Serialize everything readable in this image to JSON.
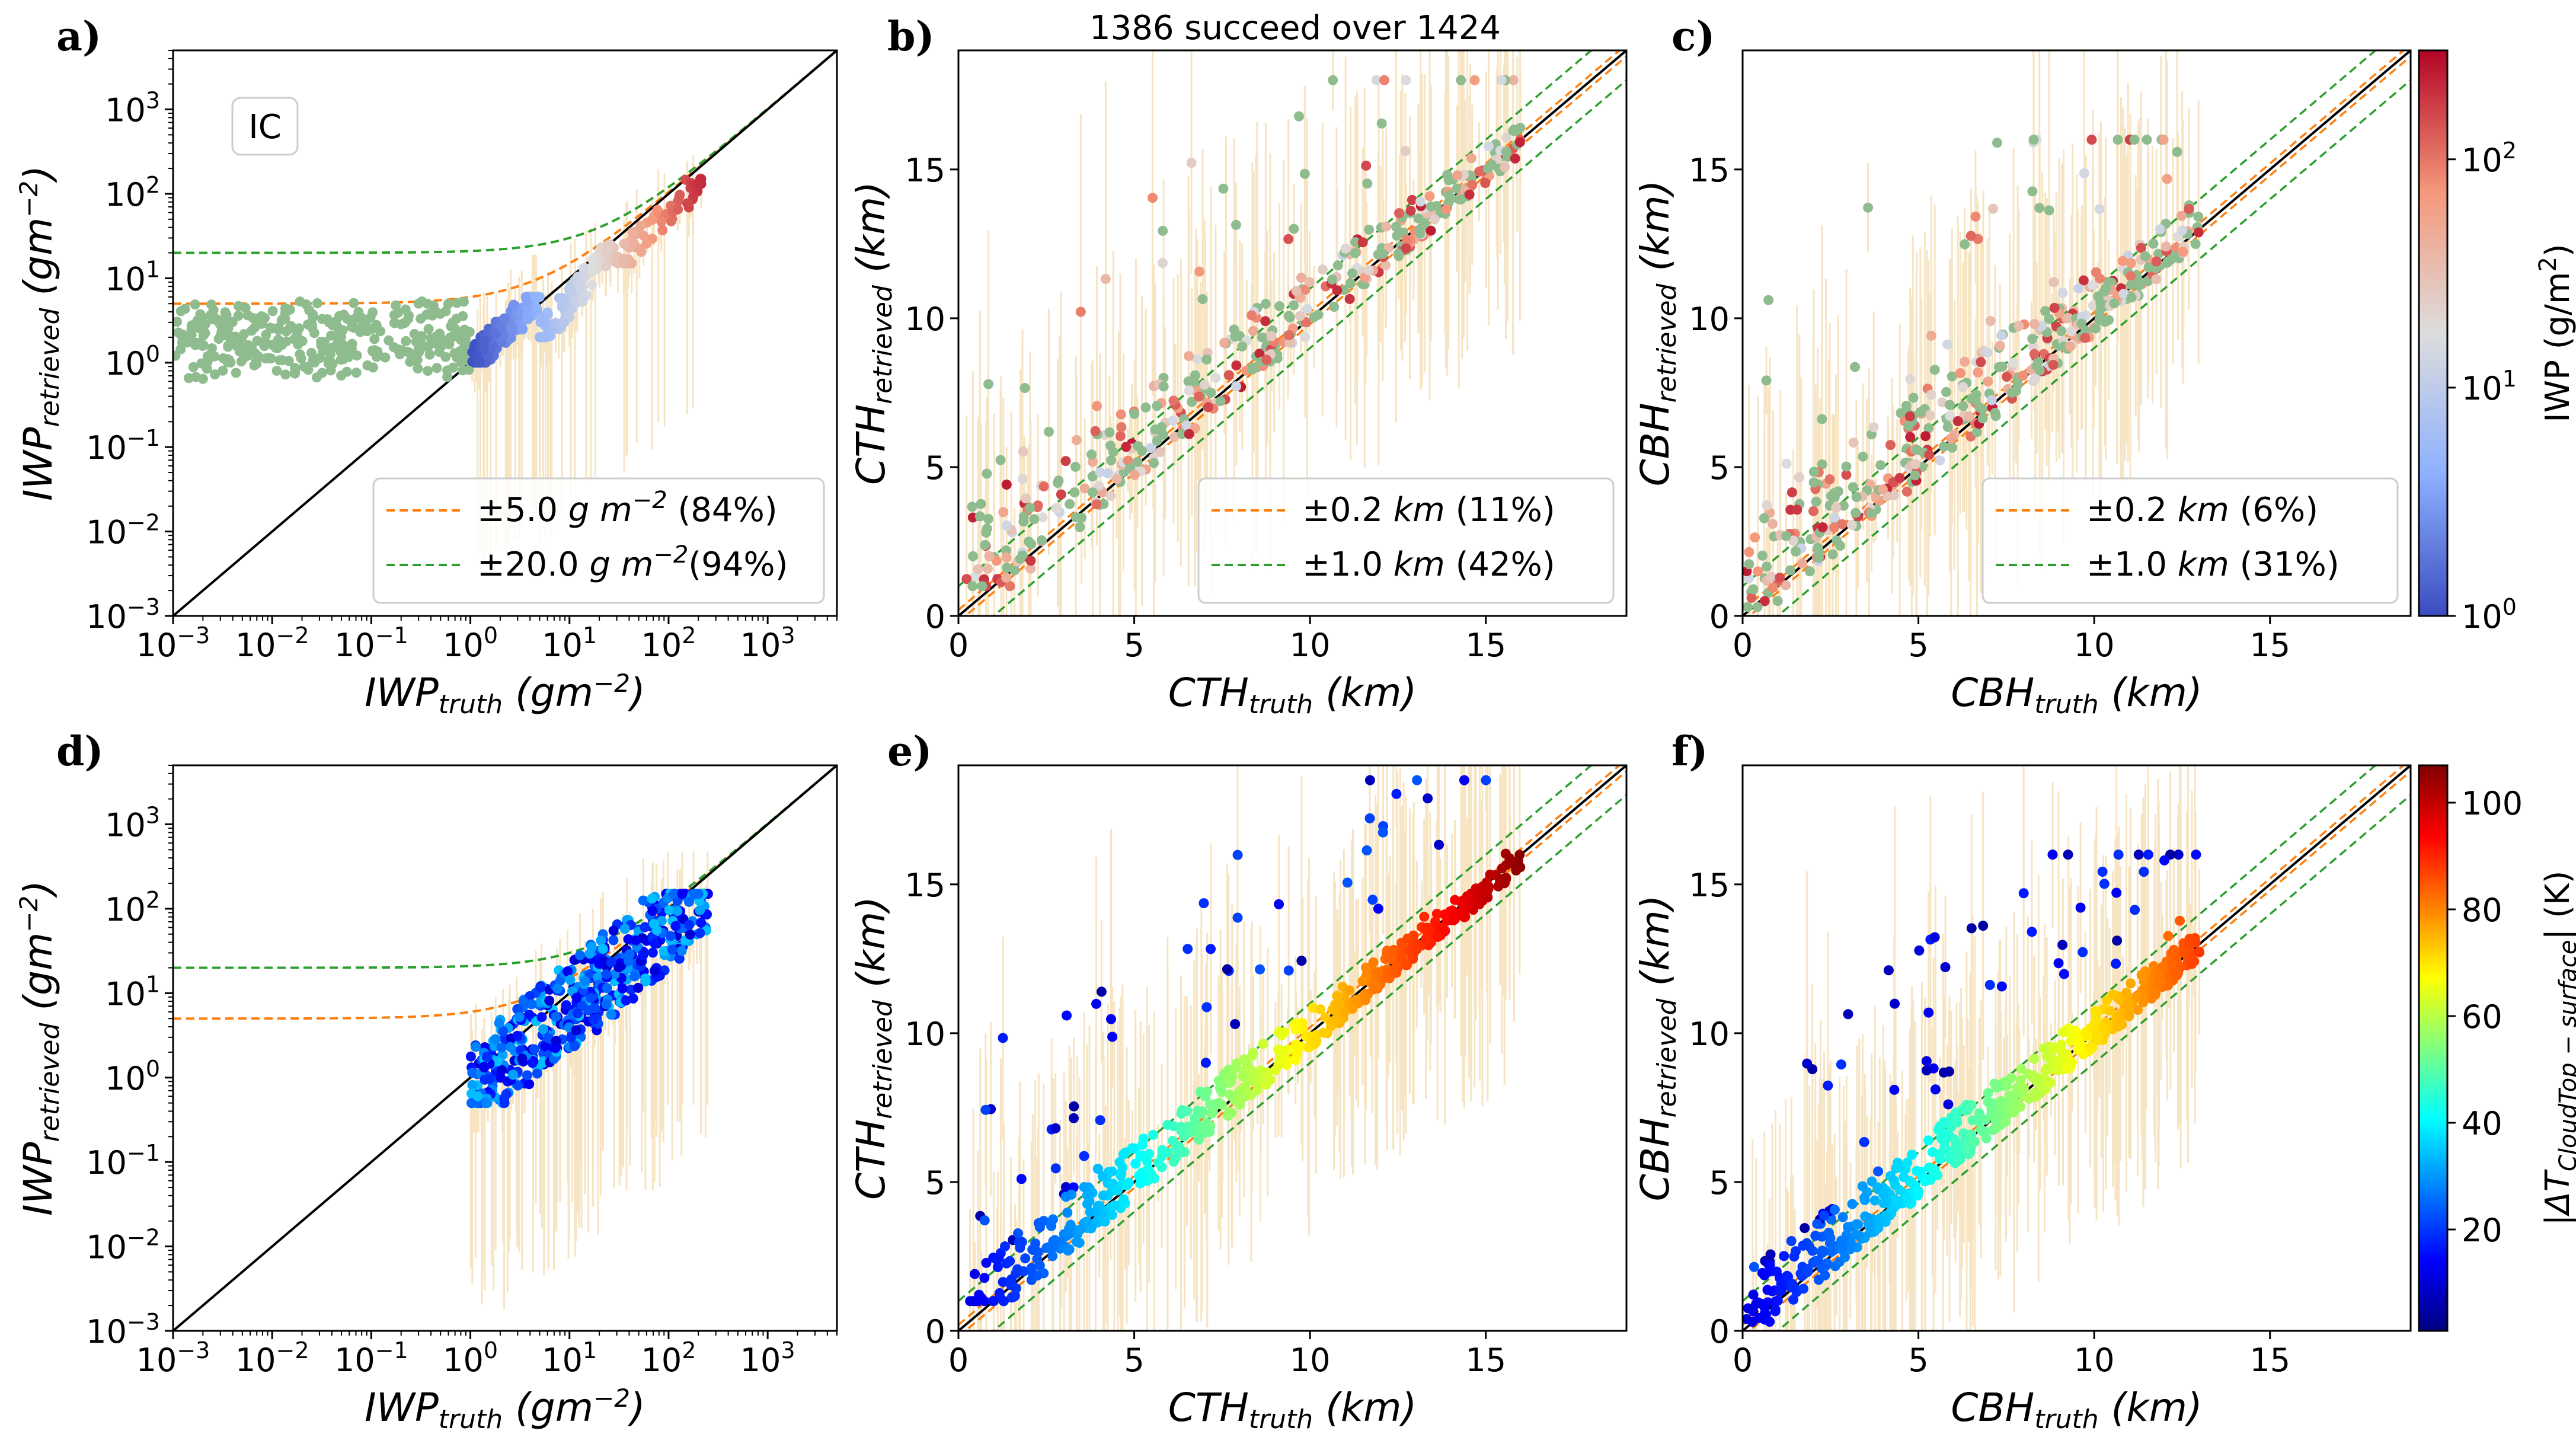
{
  "figure": {
    "suptitle": "1386 succeed over 1424",
    "colors": {
      "green_scatter": "#8fbc8f",
      "errorbar": "#f5deb3",
      "tol_orange": "#ff7f0e",
      "tol_green": "#2ca02c",
      "identity": "#000000"
    }
  },
  "chart_data": [
    {
      "id": "a",
      "panel_label": "a)",
      "type": "scatter",
      "xscale": "log",
      "yscale": "log",
      "xlim": [
        0.001,
        5000
      ],
      "ylim": [
        0.001,
        5000
      ],
      "xlabel": "IWP",
      "xlabel_sub": "truth",
      "xunit": "(gm",
      "ylabel": "IWP",
      "ylabel_sub": "retrieved",
      "yunit": "(gm",
      "unit_exp": "−2",
      "xticks": [
        0.001,
        0.01,
        0.1,
        1,
        10,
        100,
        1000
      ],
      "yticks": [
        0.001,
        0.01,
        0.1,
        1,
        10,
        100,
        1000
      ],
      "tick_base": "10",
      "tick_exps": [
        "−3",
        "−2",
        "−1",
        "0",
        "1",
        "2",
        "3"
      ],
      "annotation": "IC",
      "tolerance_kind": "absolute_log",
      "legend": [
        {
          "text": "±5.0 ",
          "unit": "g m",
          "exp": "−2",
          "pct": "  (84%)",
          "color": "#ff7f0e",
          "tol": 5
        },
        {
          "text": "±20.0 ",
          "unit": "g m",
          "exp": "−2",
          "pct": "(94%)",
          "color": "#2ca02c",
          "tol": 20
        }
      ],
      "legend_loc": "lower right",
      "colorscale": "iwp",
      "points": [
        {
          "x_range": [
            0.001,
            1.0
          ],
          "y_range": [
            0.4,
            6
          ],
          "n": 330,
          "color": "green"
        },
        {
          "x_range": [
            1.0,
            5.0
          ],
          "y_range": [
            1.0,
            6
          ],
          "n": 160,
          "color": "iwp"
        },
        {
          "x_range": [
            5.0,
            30
          ],
          "y_range": [
            2,
            25
          ],
          "n": 110,
          "color": "iwp"
        },
        {
          "x_range": [
            30,
            220
          ],
          "y_range": [
            15,
            150
          ],
          "n": 60,
          "color": "iwp"
        }
      ]
    },
    {
      "id": "b",
      "panel_label": "b)",
      "type": "scatter",
      "xscale": "linear",
      "yscale": "linear",
      "xlim": [
        0,
        19
      ],
      "ylim": [
        0,
        19
      ],
      "xlabel": "CTH",
      "xlabel_sub": "truth",
      "xunit": "(km)",
      "ylabel": "CTH",
      "ylabel_sub": "retrieved",
      "yunit": "(km)",
      "xticks": [
        0,
        5,
        10,
        15
      ],
      "yticks": [
        0,
        5,
        10,
        15
      ],
      "tick_labels": [
        "0",
        "5",
        "10",
        "15"
      ],
      "tolerance_kind": "absolute",
      "legend": [
        {
          "text": "±0.2 ",
          "unit": "km",
          "pct": " (11%)",
          "color": "#ff7f0e",
          "tol": 0.2
        },
        {
          "text": "±1.0 ",
          "unit": "km",
          "pct": " (42%)",
          "color": "#2ca02c",
          "tol": 1.0
        }
      ],
      "legend_loc": "lower right",
      "colorscale": "iwp",
      "points": [
        {
          "x_range": [
            0.2,
            16
          ],
          "y_range": [
            1,
            18
          ],
          "n": 420,
          "color": "mixed"
        }
      ]
    },
    {
      "id": "c",
      "panel_label": "c)",
      "type": "scatter",
      "xscale": "linear",
      "yscale": "linear",
      "xlim": [
        0,
        19
      ],
      "ylim": [
        0,
        19
      ],
      "xlabel": "CBH",
      "xlabel_sub": "truth",
      "xunit": "(km)",
      "ylabel": "CBH",
      "ylabel_sub": "retrieved",
      "yunit": "(km)",
      "xticks": [
        0,
        5,
        10,
        15
      ],
      "yticks": [
        0,
        5,
        10,
        15
      ],
      "tick_labels": [
        "0",
        "5",
        "10",
        "15"
      ],
      "tolerance_kind": "absolute",
      "legend": [
        {
          "text": "±0.2 ",
          "unit": "km",
          "pct": " (6%)",
          "color": "#ff7f0e",
          "tol": 0.2
        },
        {
          "text": "±1.0 ",
          "unit": "km",
          "pct": " (31%)",
          "color": "#2ca02c",
          "tol": 1.0
        }
      ],
      "legend_loc": "lower right",
      "colorscale": "iwp",
      "points": [
        {
          "x_range": [
            0.1,
            13
          ],
          "y_range": [
            0.3,
            16
          ],
          "n": 420,
          "color": "mixed"
        }
      ]
    },
    {
      "id": "d",
      "panel_label": "d)",
      "type": "scatter",
      "xscale": "log",
      "yscale": "log",
      "xlim": [
        0.001,
        5000
      ],
      "ylim": [
        0.001,
        5000
      ],
      "xlabel": "IWP",
      "xlabel_sub": "truth",
      "xunit": "(gm",
      "ylabel": "IWP",
      "ylabel_sub": "retrieved",
      "yunit": "(gm",
      "unit_exp": "−2",
      "xticks": [
        0.001,
        0.01,
        0.1,
        1,
        10,
        100,
        1000
      ],
      "yticks": [
        0.001,
        0.01,
        0.1,
        1,
        10,
        100,
        1000
      ],
      "tick_base": "10",
      "tick_exps": [
        "−3",
        "−2",
        "−1",
        "0",
        "1",
        "2",
        "3"
      ],
      "tolerance_kind": "absolute_log",
      "tol_values": [
        5,
        20
      ],
      "colorscale": "dT",
      "points": [
        {
          "x_range": [
            1.0,
            250
          ],
          "y_range": [
            0.5,
            150
          ],
          "n": 520,
          "color": "dT"
        }
      ]
    },
    {
      "id": "e",
      "panel_label": "e)",
      "type": "scatter",
      "xscale": "linear",
      "yscale": "linear",
      "xlim": [
        0,
        19
      ],
      "ylim": [
        0,
        19
      ],
      "xlabel": "CTH",
      "xlabel_sub": "truth",
      "xunit": "(km)",
      "ylabel": "CTH",
      "ylabel_sub": "retrieved",
      "yunit": "(km)",
      "xticks": [
        0,
        5,
        10,
        15
      ],
      "yticks": [
        0,
        5,
        10,
        15
      ],
      "tick_labels": [
        "0",
        "5",
        "10",
        "15"
      ],
      "tolerance_kind": "absolute",
      "tol_values": [
        0.2,
        1.0
      ],
      "colorscale": "dT",
      "points": [
        {
          "x_range": [
            0.3,
            16
          ],
          "y_range": [
            1,
            18.5
          ],
          "n": 560,
          "color": "dT"
        }
      ]
    },
    {
      "id": "f",
      "panel_label": "f)",
      "type": "scatter",
      "xscale": "linear",
      "yscale": "linear",
      "xlim": [
        0,
        19
      ],
      "ylim": [
        0,
        19
      ],
      "xlabel": "CBH",
      "xlabel_sub": "truth",
      "xunit": "(km)",
      "ylabel": "CBH",
      "ylabel_sub": "retrieved",
      "yunit": "(km)",
      "xticks": [
        0,
        5,
        10,
        15
      ],
      "yticks": [
        0,
        5,
        10,
        15
      ],
      "tick_labels": [
        "0",
        "5",
        "10",
        "15"
      ],
      "tolerance_kind": "absolute",
      "tol_values": [
        0.2,
        1.0
      ],
      "colorscale": "dT",
      "points": [
        {
          "x_range": [
            0.1,
            13
          ],
          "y_range": [
            0.3,
            16
          ],
          "n": 560,
          "color": "dT"
        }
      ]
    }
  ],
  "colorbars": [
    {
      "id": "iwp",
      "label": "IWP (g/m",
      "label_exp": "2",
      "label_end": ")",
      "scale": "log",
      "range": [
        1,
        300
      ],
      "ticks": [
        1,
        10,
        100
      ],
      "tick_base": "10",
      "tick_exps": [
        "0",
        "1",
        "2"
      ],
      "stops": [
        "#3b4cc0",
        "#8db0fe",
        "#dddddd",
        "#f4987a",
        "#b40426"
      ]
    },
    {
      "id": "dT",
      "label": "|ΔT",
      "label_sub": "CloudTop − surface",
      "label_end": "| (K)",
      "scale": "linear",
      "range": [
        1,
        107
      ],
      "ticks": [
        20,
        40,
        60,
        80,
        100
      ],
      "tick_labels": [
        "20",
        "40",
        "60",
        "80",
        "100"
      ],
      "stops": [
        "#00007f",
        "#0000ff",
        "#007fff",
        "#00ffff",
        "#7fff7f",
        "#ffff00",
        "#ff7f00",
        "#ff0000",
        "#7f0000"
      ]
    }
  ]
}
